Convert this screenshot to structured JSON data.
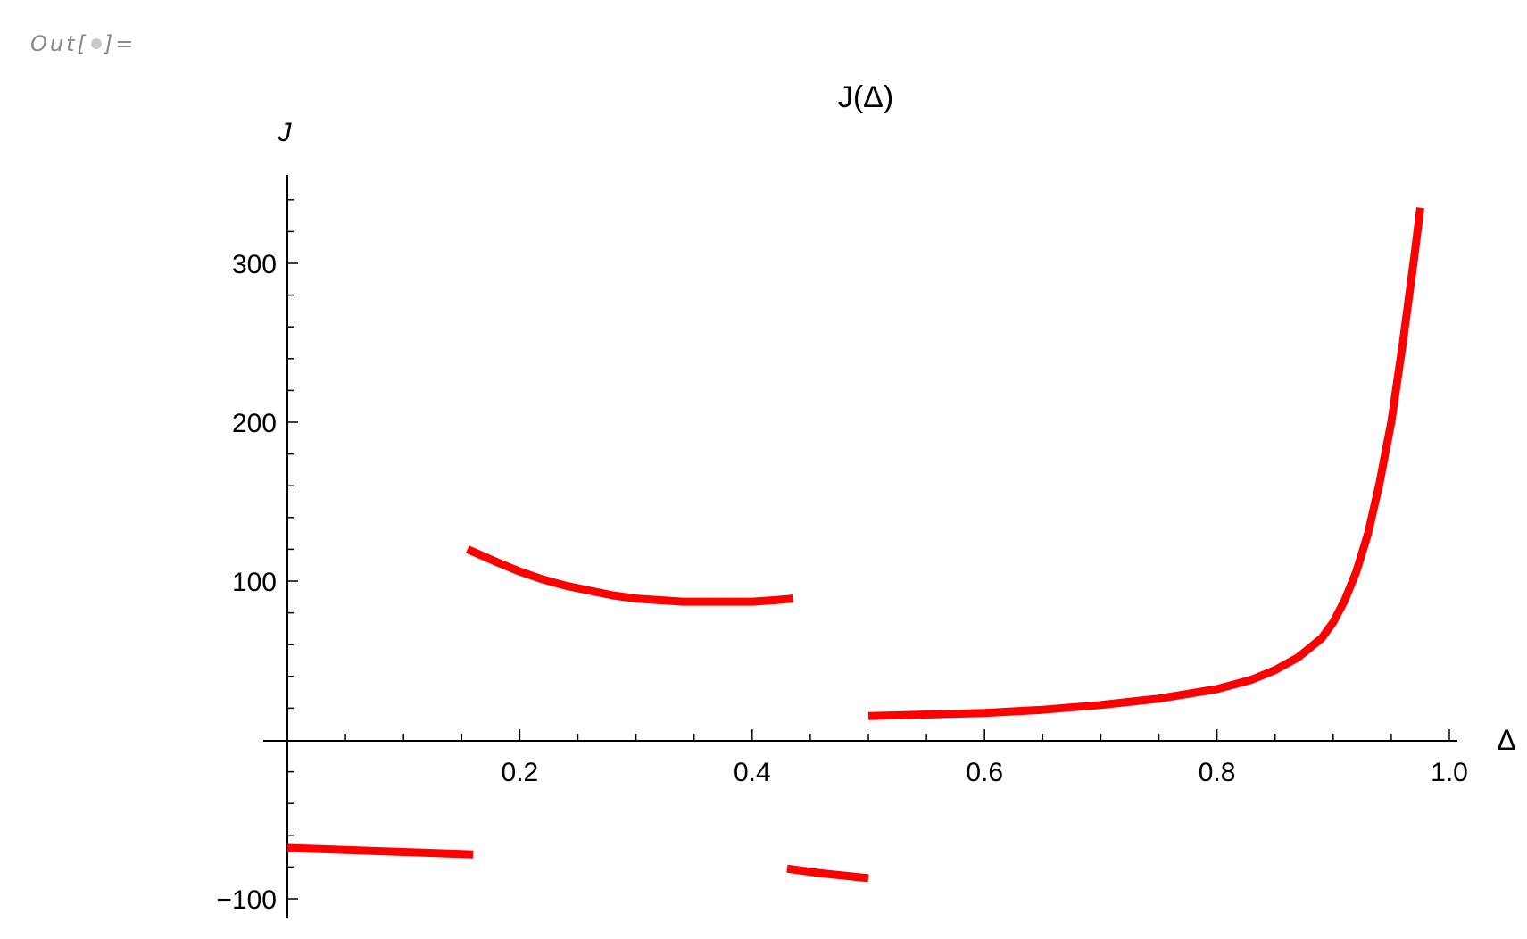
{
  "cell": {
    "out_prefix": "Out[",
    "out_suffix": "]="
  },
  "chart_data": {
    "type": "line",
    "title": "J(Δ)",
    "xlabel": "Δ",
    "ylabel": "J",
    "xlim": [
      0.0,
      1.0
    ],
    "ylim": [
      -100,
      350
    ],
    "x_ticks": [
      0.2,
      0.4,
      0.6,
      0.8,
      1.0
    ],
    "x_tick_labels": [
      "0.2",
      "0.4",
      "0.6",
      "0.8",
      "1.0"
    ],
    "y_ticks": [
      -100,
      100,
      200,
      300
    ],
    "y_tick_labels": [
      "−100",
      "100",
      "200",
      "300"
    ],
    "grid": false,
    "color": "#ff0000",
    "series": [
      {
        "x": [
          0.0,
          0.04,
          0.08,
          0.12,
          0.16
        ],
        "y": [
          -68,
          -69,
          -70,
          -71,
          -72
        ]
      },
      {
        "x": [
          0.155,
          0.18,
          0.2,
          0.22,
          0.24,
          0.26,
          0.28,
          0.3,
          0.32,
          0.34,
          0.36,
          0.38,
          0.4,
          0.42,
          0.435
        ],
        "y": [
          120,
          112,
          106,
          101,
          97,
          94,
          91,
          89,
          88,
          87,
          87,
          87,
          87,
          88,
          89
        ]
      },
      {
        "x": [
          0.43,
          0.46,
          0.5
        ],
        "y": [
          -81,
          -84,
          -87
        ]
      },
      {
        "x": [
          0.5,
          0.55,
          0.6,
          0.65,
          0.7,
          0.75,
          0.8,
          0.83,
          0.85,
          0.87,
          0.89,
          0.9,
          0.91,
          0.92,
          0.93,
          0.94,
          0.95,
          0.96,
          0.97,
          0.975
        ],
        "y": [
          15,
          16,
          17,
          19,
          22,
          26,
          32,
          38,
          44,
          52,
          64,
          74,
          88,
          106,
          130,
          162,
          200,
          250,
          305,
          335
        ]
      }
    ]
  }
}
